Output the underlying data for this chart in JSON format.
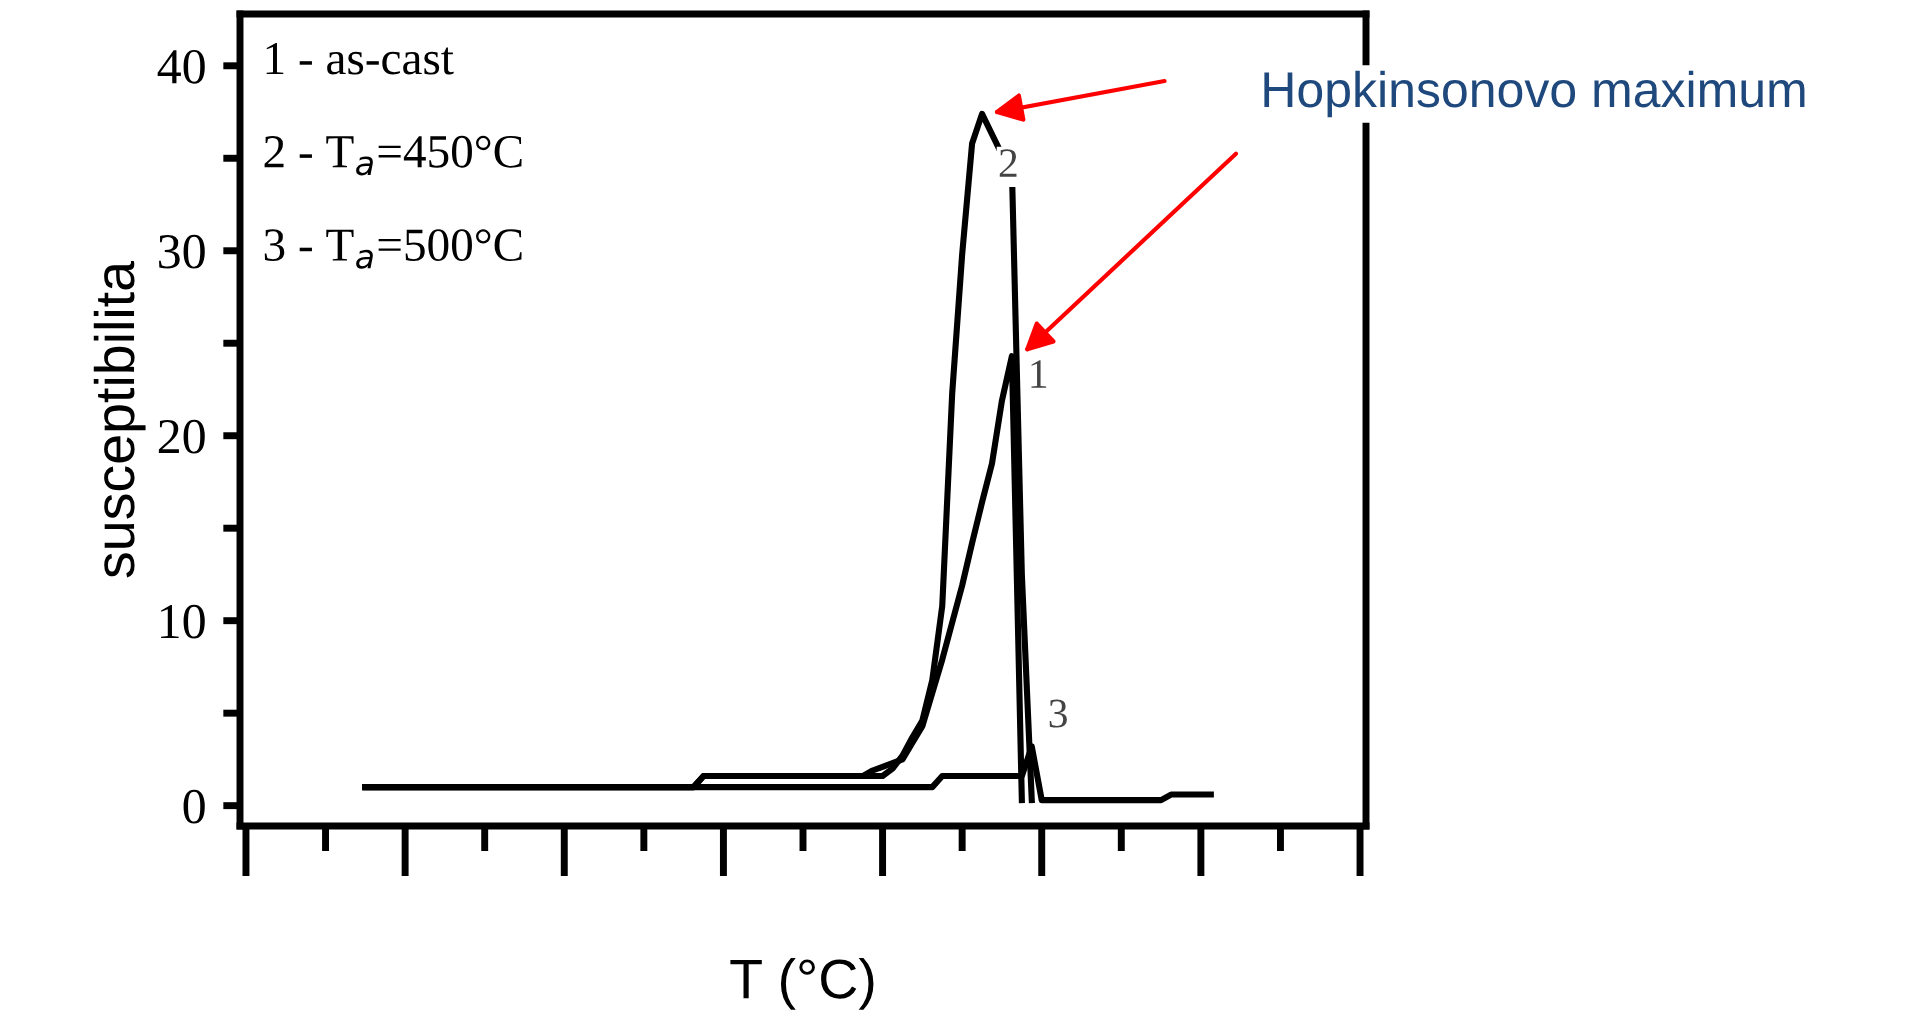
{
  "chart_data": {
    "type": "line",
    "xlabel": "T (°C)",
    "ylabel": "susceptibilita",
    "categories": [
      null,
      null,
      null,
      null,
      null,
      null,
      null,
      null,
      null,
      null,
      null,
      null,
      null,
      null,
      null,
      null,
      null,
      null,
      null,
      null,
      null,
      null,
      null,
      null,
      null,
      null,
      null,
      null,
      null,
      null,
      null,
      null,
      null,
      null,
      null,
      null,
      null,
      null,
      null,
      null,
      null,
      null,
      null,
      null,
      null,
      null,
      null,
      null,
      null,
      null,
      null,
      null,
      null,
      null,
      null,
      null,
      null,
      null,
      null,
      null,
      null,
      null,
      null,
      null,
      null,
      null,
      null,
      null,
      null,
      null,
      null,
      null,
      null,
      null,
      null,
      null,
      null,
      null,
      null,
      null,
      null,
      null,
      null,
      null,
      null,
      null,
      null,
      null,
      null,
      null,
      null,
      null,
      null,
      null,
      null,
      null,
      null,
      null,
      null,
      null,
      null,
      null,
      null,
      null,
      null,
      null,
      null,
      null,
      null,
      null,
      null,
      null,
      null
    ],
    "series": [
      {
        "name": "1",
        "color": "#000000",
        "values": [
          null,
          null,
          null,
          null,
          null,
          null,
          null,
          null,
          null,
          null,
          null,
          null,
          1.0,
          1.0,
          1.0,
          1.0,
          1.0,
          1.0,
          1.0,
          1.0,
          1.0,
          1.0,
          1.0,
          1.0,
          1.0,
          1.0,
          1.0,
          1.0,
          1.0,
          1.0,
          1.0,
          1.0,
          1.0,
          1.0,
          1.0,
          1.0,
          1.0,
          1.0,
          1.0,
          1.0,
          1.0,
          1.0,
          1.0,
          1.0,
          1.0,
          1.0,
          1.6,
          1.6,
          1.6,
          1.6,
          1.6,
          1.6,
          1.6,
          1.6,
          1.6,
          1.6,
          1.6,
          1.6,
          1.6,
          1.6,
          1.6,
          1.6,
          1.6,
          1.9,
          2.1,
          2.3,
          2.5,
          3.4,
          4.3,
          6.1,
          7.9,
          9.9,
          11.9,
          14.2,
          16.4,
          18.5,
          21.9,
          24.3,
          0.3,
          null,
          null,
          null,
          null,
          null,
          null,
          null,
          null,
          null,
          null,
          null,
          null,
          null,
          null,
          null,
          null,
          null,
          null,
          null,
          null,
          null,
          null,
          null,
          null,
          null,
          null,
          null,
          null,
          null,
          null,
          null,
          null,
          null,
          null
        ]
      },
      {
        "name": "2",
        "color": "#000000",
        "values": [
          null,
          null,
          null,
          null,
          null,
          null,
          null,
          null,
          null,
          null,
          null,
          null,
          1.0,
          1.0,
          1.0,
          1.0,
          1.0,
          1.0,
          1.0,
          1.0,
          1.0,
          1.0,
          1.0,
          1.0,
          1.0,
          1.0,
          1.0,
          1.0,
          1.0,
          1.0,
          1.0,
          1.0,
          1.0,
          1.0,
          1.0,
          1.0,
          1.0,
          1.0,
          1.0,
          1.0,
          1.0,
          1.0,
          1.0,
          1.0,
          1.0,
          1.0,
          1.6,
          1.6,
          1.6,
          1.6,
          1.6,
          1.6,
          1.6,
          1.6,
          1.6,
          1.6,
          1.6,
          1.6,
          1.6,
          1.6,
          1.6,
          1.6,
          1.6,
          1.6,
          1.6,
          2.0,
          2.7,
          3.7,
          4.6,
          6.8,
          10.8,
          22.3,
          29.8,
          35.8,
          37.4,
          36.3,
          35.2,
          34.4,
          12.5,
          0.3,
          null,
          null,
          null,
          null,
          null,
          null,
          null,
          null,
          null,
          null,
          null,
          null,
          null,
          null,
          null,
          null,
          null,
          null,
          null,
          null,
          null,
          null,
          null,
          null,
          null,
          null,
          null,
          null,
          null,
          null,
          null,
          null,
          null
        ]
      },
      {
        "name": "3",
        "color": "#000000",
        "values": [
          null,
          null,
          null,
          null,
          null,
          null,
          null,
          null,
          null,
          null,
          null,
          null,
          1.0,
          1.0,
          1.0,
          1.0,
          1.0,
          1.0,
          1.0,
          1.0,
          1.0,
          1.0,
          1.0,
          1.0,
          1.0,
          1.0,
          1.0,
          1.0,
          1.0,
          1.0,
          1.0,
          1.0,
          1.0,
          1.0,
          1.0,
          1.0,
          1.0,
          1.0,
          1.0,
          1.0,
          1.0,
          1.0,
          1.0,
          1.0,
          1.0,
          1.0,
          1.0,
          1.0,
          1.0,
          1.0,
          1.0,
          1.0,
          1.0,
          1.0,
          1.0,
          1.0,
          1.0,
          1.0,
          1.0,
          1.0,
          1.0,
          1.0,
          1.0,
          1.0,
          1.0,
          1.0,
          1.0,
          1.0,
          1.0,
          1.0,
          1.6,
          1.6,
          1.6,
          1.6,
          1.6,
          1.6,
          1.6,
          1.6,
          1.6,
          3.2,
          0.3,
          0.3,
          0.3,
          0.3,
          0.3,
          0.3,
          0.3,
          0.3,
          0.3,
          0.3,
          0.3,
          0.3,
          0.3,
          0.6,
          0.6,
          0.6,
          0.6,
          0.6,
          null,
          null,
          null,
          null,
          null,
          null,
          null,
          null,
          null,
          null,
          null,
          null,
          null,
          null,
          null
        ]
      }
    ],
    "ylim": [
      -1.1,
      42.8
    ],
    "yticks": [
      0,
      {
        "value": 5,
        "label": null
      },
      10,
      {
        "value": 15,
        "label": null
      },
      20,
      {
        "value": 25,
        "label": null
      },
      30,
      {
        "value": 35,
        "label": null
      },
      40
    ],
    "grid": false,
    "legend": false,
    "marker": "none",
    "line_style": "solid",
    "annotations": [
      "1 - as-cast",
      "2 - T$_{a}$=450°C",
      "3 - T$_{a}$=500°C",
      {
        "text": "Hopkinsonovo maximum"
      }
    ]
  }
}
